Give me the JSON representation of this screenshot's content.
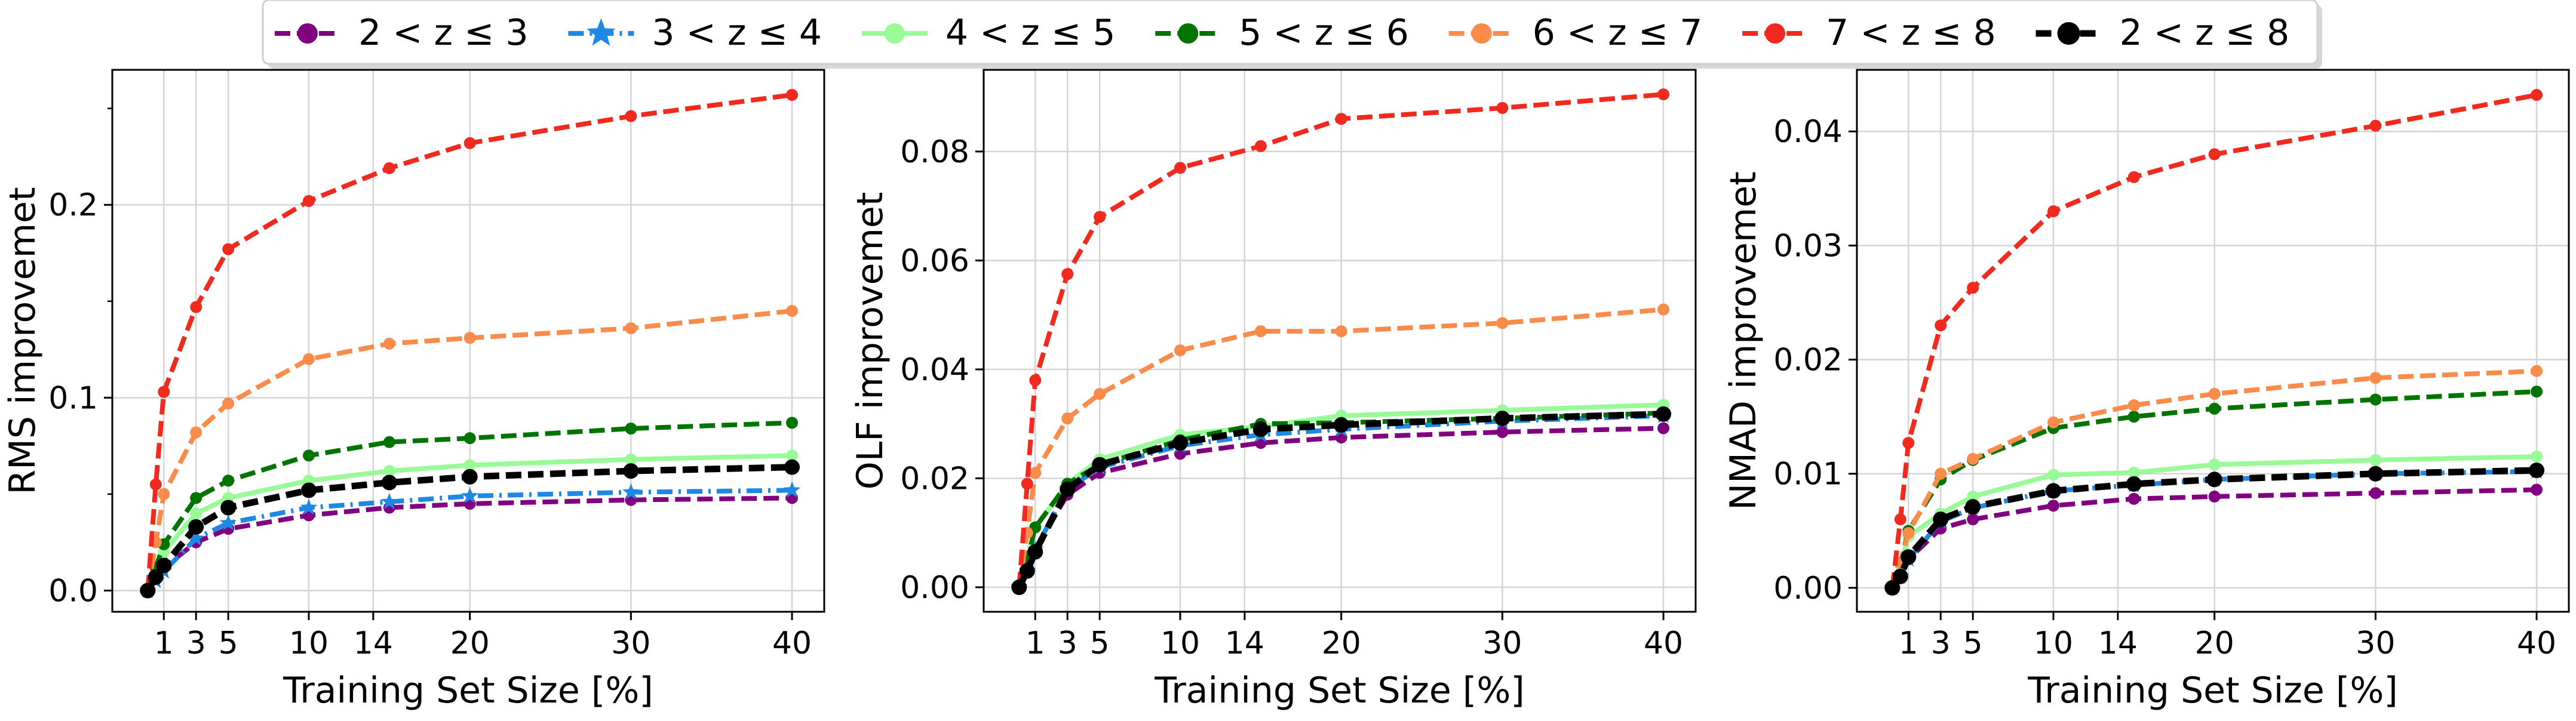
{
  "legend": {
    "location": "upper center",
    "entries": [
      {
        "label": "2 < z ≤ 3",
        "color": "#800080",
        "dash": "dashed",
        "marker": "circle"
      },
      {
        "label": "3 < z ≤ 4",
        "color": "#1e88e5",
        "dash": "dashdot",
        "marker": "star"
      },
      {
        "label": "4 < z ≤ 5",
        "color": "#98fb98",
        "dash": "solid",
        "marker": "circle"
      },
      {
        "label": "5 < z ≤ 6",
        "color": "#007400",
        "dash": "dashed",
        "marker": "circle"
      },
      {
        "label": "6 < z ≤ 7",
        "color": "#f98b4b",
        "dash": "dashed",
        "marker": "circle"
      },
      {
        "label": "7 < z ≤ 8",
        "color": "#f02a1e",
        "dash": "dashed",
        "marker": "circle"
      },
      {
        "label": "2 < z ≤ 8",
        "color": "#000000",
        "dash": "dashed",
        "marker": "circle"
      }
    ]
  },
  "chart_data": [
    {
      "type": "line",
      "title": "",
      "xlabel": "Training Set Size [%]",
      "ylabel": "RMS improvemet",
      "xlim": [
        -2.2,
        42
      ],
      "ylim": [
        -0.011,
        0.27
      ],
      "xticks": [
        1,
        3,
        5,
        10,
        14,
        20,
        30,
        40
      ],
      "xtick_labels": [
        "1",
        "3",
        "5",
        "10",
        "14",
        "20",
        "30",
        "40"
      ],
      "yticks": [
        0.0,
        0.1,
        0.2
      ],
      "ytick_labels": [
        "0.0",
        "0.1",
        "0.2"
      ],
      "yminor_ticks": [
        0.05,
        0.15,
        0.25
      ],
      "grid": true,
      "x": [
        0,
        0.5,
        1,
        3,
        5,
        10,
        15,
        20,
        30,
        40
      ],
      "series": [
        {
          "name": "2 < z ≤ 3",
          "values": [
            0.0,
            0.006,
            0.012,
            0.025,
            0.032,
            0.039,
            0.043,
            0.045,
            0.047,
            0.048
          ]
        },
        {
          "name": "3 < z ≤ 4",
          "values": [
            0.0,
            0.005,
            0.01,
            0.027,
            0.035,
            0.043,
            0.046,
            0.049,
            0.051,
            0.052
          ]
        },
        {
          "name": "4 < z ≤ 5",
          "values": [
            0.0,
            0.01,
            0.02,
            0.04,
            0.048,
            0.057,
            0.062,
            0.065,
            0.068,
            0.07
          ]
        },
        {
          "name": "5 < z ≤ 6",
          "values": [
            0.0,
            0.012,
            0.024,
            0.048,
            0.057,
            0.07,
            0.077,
            0.079,
            0.084,
            0.087
          ]
        },
        {
          "name": "6 < z ≤ 7",
          "values": [
            0.0,
            0.025,
            0.05,
            0.082,
            0.097,
            0.12,
            0.128,
            0.131,
            0.136,
            0.145
          ]
        },
        {
          "name": "7 < z ≤ 8",
          "values": [
            0.0,
            0.055,
            0.103,
            0.147,
            0.177,
            0.202,
            0.219,
            0.232,
            0.246,
            0.257
          ]
        },
        {
          "name": "2 < z ≤ 8",
          "values": [
            0.0,
            0.007,
            0.013,
            0.033,
            0.043,
            0.052,
            0.056,
            0.059,
            0.062,
            0.064
          ]
        }
      ]
    },
    {
      "type": "line",
      "title": "",
      "xlabel": "Training Set Size [%]",
      "ylabel": "OLF improvemet",
      "xlim": [
        -2.2,
        42
      ],
      "ylim": [
        -0.0045,
        0.095
      ],
      "xticks": [
        1,
        3,
        5,
        10,
        14,
        20,
        30,
        40
      ],
      "xtick_labels": [
        "1",
        "3",
        "5",
        "10",
        "14",
        "20",
        "30",
        "40"
      ],
      "yticks": [
        0.0,
        0.02,
        0.04,
        0.06,
        0.08
      ],
      "ytick_labels": [
        "0.00",
        "0.02",
        "0.04",
        "0.06",
        "0.08"
      ],
      "yminor_ticks": [],
      "grid": true,
      "x": [
        0,
        0.5,
        1,
        3,
        5,
        10,
        15,
        20,
        30,
        40
      ],
      "series": [
        {
          "name": "2 < z ≤ 3",
          "values": [
            0.0,
            0.003,
            0.007,
            0.017,
            0.021,
            0.0245,
            0.0265,
            0.0275,
            0.0285,
            0.0292
          ]
        },
        {
          "name": "3 < z ≤ 4",
          "values": [
            0.0,
            0.003,
            0.007,
            0.018,
            0.022,
            0.026,
            0.028,
            0.029,
            0.0305,
            0.0315
          ]
        },
        {
          "name": "4 < z ≤ 5",
          "values": [
            0.0,
            0.005,
            0.011,
            0.019,
            0.0235,
            0.028,
            0.0295,
            0.0315,
            0.0325,
            0.0335
          ]
        },
        {
          "name": "5 < z ≤ 6",
          "values": [
            0.0,
            0.005,
            0.011,
            0.019,
            0.0225,
            0.027,
            0.03,
            0.0302,
            0.031,
            0.032
          ]
        },
        {
          "name": "6 < z ≤ 7",
          "values": [
            0.0,
            0.01,
            0.021,
            0.031,
            0.0355,
            0.0435,
            0.047,
            0.047,
            0.0485,
            0.051
          ]
        },
        {
          "name": "7 < z ≤ 8",
          "values": [
            0.0,
            0.019,
            0.038,
            0.0575,
            0.068,
            0.077,
            0.081,
            0.086,
            0.088,
            0.0905
          ]
        },
        {
          "name": "2 < z ≤ 8",
          "values": [
            0.0,
            0.003,
            0.0065,
            0.018,
            0.0225,
            0.0265,
            0.029,
            0.0298,
            0.031,
            0.0318
          ]
        }
      ]
    },
    {
      "type": "line",
      "title": "",
      "xlabel": "Training Set Size [%]",
      "ylabel": "NMAD improvemet",
      "xlim": [
        -2.2,
        42
      ],
      "ylim": [
        -0.0021,
        0.0454
      ],
      "xticks": [
        1,
        3,
        5,
        10,
        14,
        20,
        30,
        40
      ],
      "xtick_labels": [
        "1",
        "3",
        "5",
        "10",
        "14",
        "20",
        "30",
        "40"
      ],
      "yticks": [
        0.0,
        0.01,
        0.02,
        0.03,
        0.04
      ],
      "ytick_labels": [
        "0.00",
        "0.01",
        "0.02",
        "0.03",
        "0.04"
      ],
      "yminor_ticks": [],
      "grid": true,
      "x": [
        0,
        0.5,
        1,
        3,
        5,
        10,
        15,
        20,
        30,
        40
      ],
      "series": [
        {
          "name": "2 < z ≤ 3",
          "values": [
            0.0,
            0.001,
            0.0025,
            0.0052,
            0.006,
            0.0072,
            0.0078,
            0.008,
            0.0083,
            0.0086
          ]
        },
        {
          "name": "3 < z ≤ 4",
          "values": [
            0.0,
            0.001,
            0.0025,
            0.0058,
            0.007,
            0.0085,
            0.009,
            0.0095,
            0.01,
            0.0102
          ]
        },
        {
          "name": "4 < z ≤ 5",
          "values": [
            0.0,
            0.002,
            0.0045,
            0.0065,
            0.008,
            0.0099,
            0.0101,
            0.0108,
            0.0112,
            0.0115
          ]
        },
        {
          "name": "5 < z ≤ 6",
          "values": [
            0.0,
            0.0022,
            0.005,
            0.0095,
            0.0112,
            0.014,
            0.015,
            0.0157,
            0.0165,
            0.0172
          ]
        },
        {
          "name": "6 < z ≤ 7",
          "values": [
            0.0,
            0.0022,
            0.0048,
            0.01,
            0.0113,
            0.0145,
            0.016,
            0.017,
            0.0184,
            0.019
          ]
        },
        {
          "name": "7 < z ≤ 8",
          "values": [
            0.0,
            0.006,
            0.0127,
            0.023,
            0.0263,
            0.033,
            0.036,
            0.038,
            0.0405,
            0.0432
          ]
        },
        {
          "name": "2 < z ≤ 8",
          "values": [
            0.0,
            0.001,
            0.0027,
            0.006,
            0.0071,
            0.0085,
            0.0091,
            0.0095,
            0.01,
            0.0103
          ]
        }
      ]
    }
  ]
}
